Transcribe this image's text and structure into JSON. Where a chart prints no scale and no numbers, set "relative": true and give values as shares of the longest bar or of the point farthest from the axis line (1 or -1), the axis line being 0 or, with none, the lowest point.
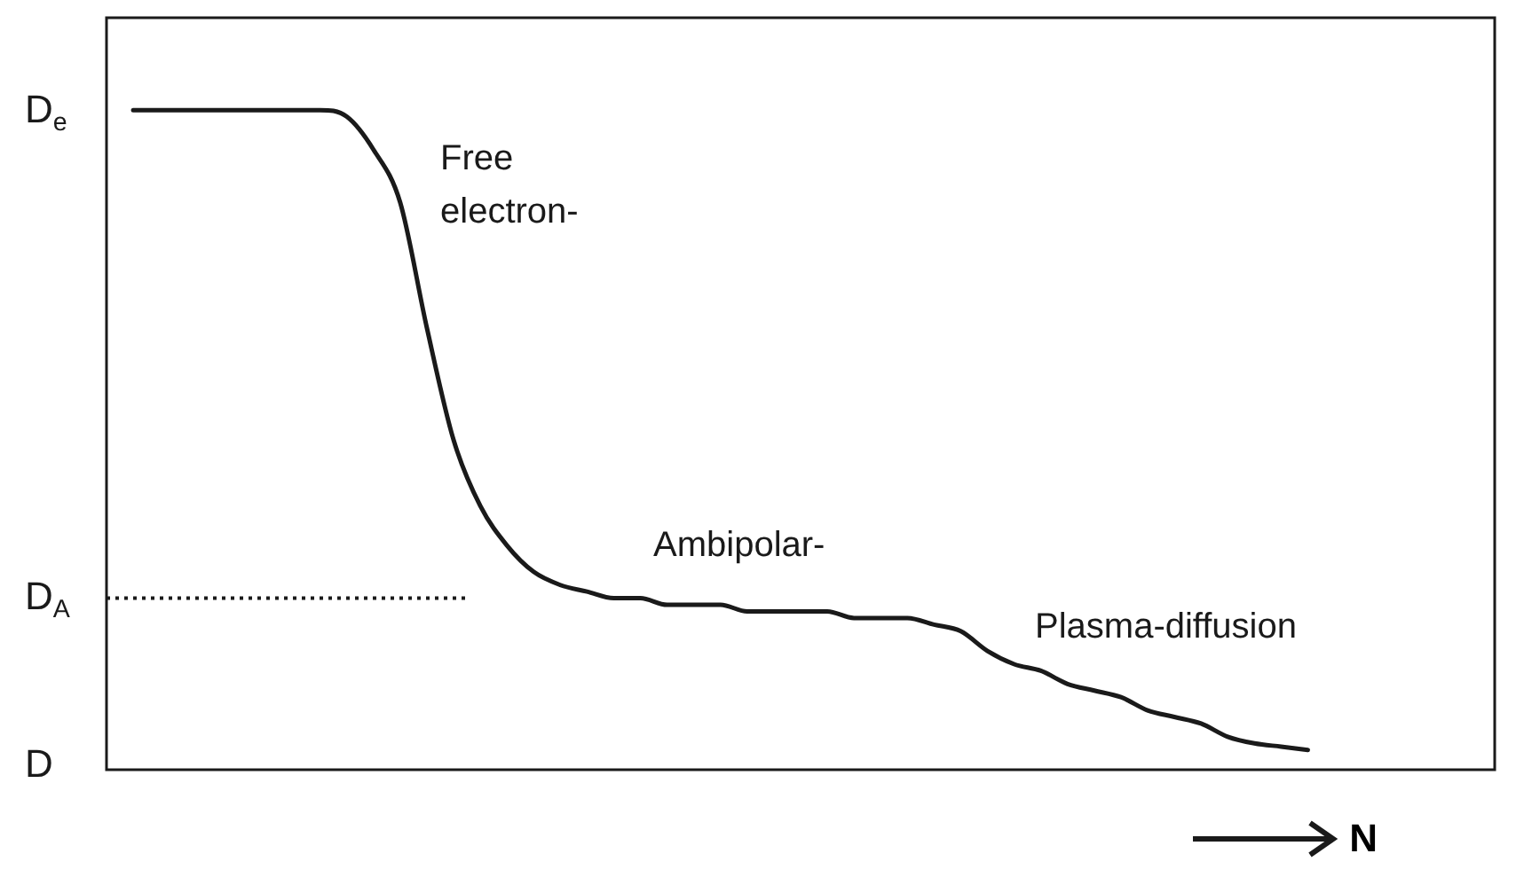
{
  "chart_data": {
    "type": "line",
    "relative": true,
    "xlabel": "N",
    "legend": false,
    "grid": false,
    "marker": "none",
    "line_style": "solid",
    "categories": [
      null,
      null,
      null,
      null,
      null,
      null,
      null,
      null,
      null,
      null,
      null,
      null,
      null,
      null,
      null,
      null,
      null,
      null,
      null,
      null,
      null,
      null,
      null,
      null,
      null,
      null,
      null,
      null,
      null,
      null,
      null,
      null,
      null,
      null,
      null,
      null,
      null,
      null,
      null,
      null,
      null,
      null,
      null,
      null,
      null,
      null,
      null,
      null,
      null,
      null,
      null,
      null,
      null
    ],
    "series": [
      {
        "color": "#1a1a1a",
        "values": [
          null,
          1,
          1,
          1,
          1,
          1,
          1,
          1,
          1,
          0.99,
          0.94,
          0.86,
          0.67,
          0.5,
          0.4,
          0.34,
          0.3,
          0.28,
          0.27,
          0.26,
          0.26,
          0.25,
          0.25,
          0.25,
          0.24,
          0.24,
          0.24,
          0.24,
          0.23,
          0.23,
          0.23,
          0.22,
          0.21,
          0.18,
          0.16,
          0.15,
          0.13,
          0.12,
          0.11,
          0.09,
          0.08,
          0.07,
          0.05,
          0.04,
          0.035,
          0.03,
          null,
          null,
          null,
          null,
          null,
          null,
          null
        ]
      }
    ],
    "ref_lines": [
      {
        "axis": "y",
        "value": 0.26,
        "label": "D$_{A}$",
        "line_style": "dotted",
        "color": "#1a1a1a"
      }
    ],
    "annotations": [
      "D$_{e}$",
      "D",
      "Free\nelectron-",
      "Ambipolar-",
      "Plasma-diffusion"
    ]
  }
}
